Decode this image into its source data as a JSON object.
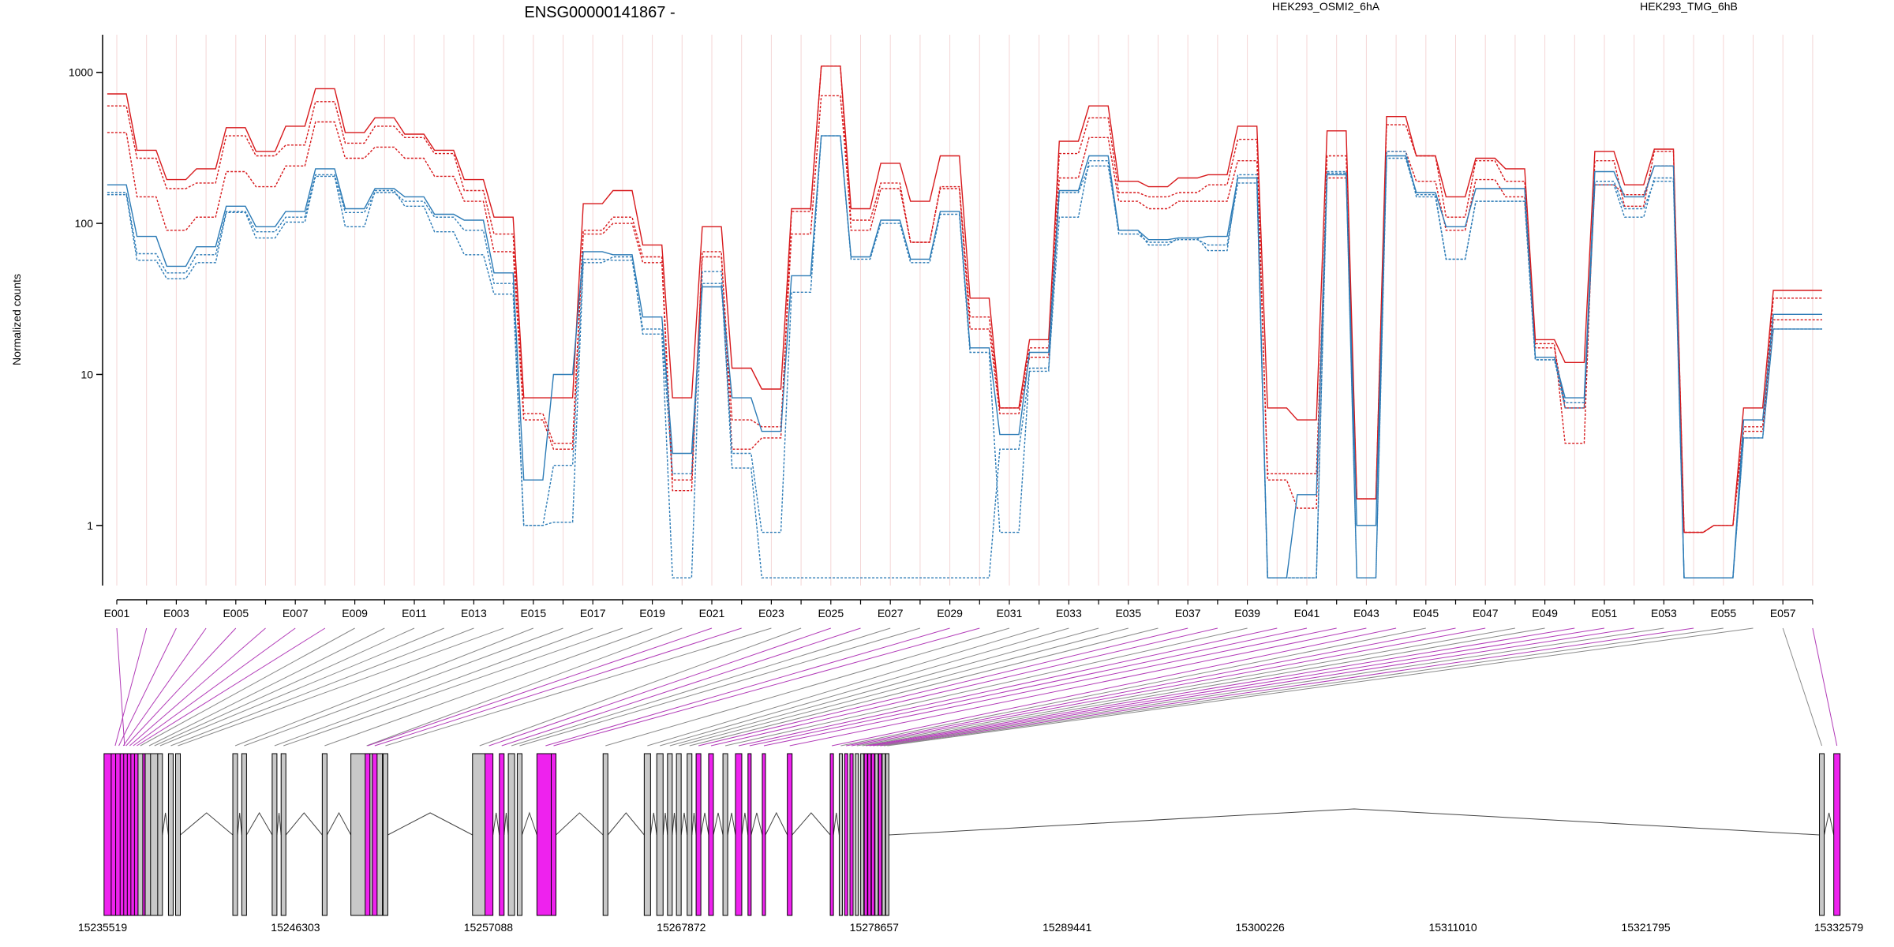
{
  "header": {
    "title": "ENSG00000141867 -",
    "legend": [
      {
        "label": "HEK293_OSMI2_6hA",
        "color": "#d7191c"
      },
      {
        "label": "HEK293_TMG_6hB",
        "color": "#2c7bb6"
      }
    ]
  },
  "colors": {
    "red": "#d7191c",
    "blue": "#2c7bb6",
    "significant_exon": "#ee22ee",
    "exon": "#c8c8c8",
    "gridline": "#f4d6d6",
    "significant_link": "#b23cb8",
    "link": "#8a8a8a"
  },
  "chart_data": {
    "type": "line",
    "ylabel": "Normalized counts",
    "yscale": "log",
    "yticks": [
      1,
      10,
      100,
      1000
    ],
    "ytick_labels": [
      "1",
      "10",
      "100",
      "1000"
    ],
    "ylim": [
      0.4,
      1500
    ],
    "categories": [
      "E001",
      "E002",
      "E003",
      "E004",
      "E005",
      "E006",
      "E007",
      "E008",
      "E009",
      "E010",
      "E011",
      "E012",
      "E013",
      "E014",
      "E015",
      "E016",
      "E017",
      "E018",
      "E019",
      "E020",
      "E021",
      "E022",
      "E023",
      "E024",
      "E025",
      "E026",
      "E027",
      "E028",
      "E029",
      "E030",
      "E031",
      "E032",
      "E033",
      "E034",
      "E035",
      "E036",
      "E037",
      "E038",
      "E039",
      "E040",
      "E041",
      "E042",
      "E043",
      "E044",
      "E045",
      "E046",
      "E047",
      "E048",
      "E049",
      "E050",
      "E051",
      "E052",
      "E053",
      "E054",
      "E055",
      "E056",
      "E057",
      "E058"
    ],
    "labeled_ticks": [
      "E001",
      "E003",
      "E005",
      "E007",
      "E009",
      "E011",
      "E013",
      "E015",
      "E017",
      "E019",
      "E021",
      "E023",
      "E025",
      "E027",
      "E029",
      "E031",
      "E033",
      "E035",
      "E037",
      "E039",
      "E041",
      "E043",
      "E045",
      "E047",
      "E049",
      "E051",
      "E053",
      "E055",
      "E057"
    ],
    "series": [
      {
        "name": "HEK293_OSMI2_6hA",
        "color": "red",
        "style": "solid",
        "values": [
          720,
          305,
          195,
          230,
          430,
          300,
          440,
          780,
          400,
          500,
          390,
          305,
          195,
          110,
          7,
          7,
          135,
          165,
          72,
          7,
          95,
          11,
          8,
          125,
          1100,
          125,
          250,
          140,
          280,
          32,
          6,
          17,
          350,
          600,
          190,
          175,
          200,
          210,
          440,
          6,
          5,
          410,
          1.5,
          510,
          280,
          150,
          270,
          230,
          17,
          12,
          300,
          180,
          310,
          0.9,
          1,
          6,
          36,
          36
        ]
      },
      {
        "name": "HEK293_OSMI2_6hA",
        "color": "red",
        "style": "dashed",
        "values": [
          600,
          270,
          170,
          185,
          380,
          280,
          330,
          640,
          340,
          440,
          370,
          290,
          165,
          85,
          5.5,
          3.5,
          90,
          110,
          60,
          2,
          60,
          5,
          4.5,
          85,
          700,
          105,
          185,
          75,
          175,
          24,
          6,
          15,
          290,
          500,
          160,
          150,
          160,
          180,
          360,
          2,
          1.3,
          280,
          1.5,
          450,
          280,
          110,
          260,
          190,
          16,
          3.5,
          260,
          130,
          300,
          0.9,
          1,
          4.5,
          32,
          32
        ]
      },
      {
        "name": "HEK293_OSMI2_6hA",
        "color": "red",
        "style": "dashed",
        "values": [
          400,
          150,
          90,
          110,
          220,
          175,
          240,
          470,
          270,
          320,
          270,
          205,
          140,
          65,
          5,
          3.2,
          85,
          100,
          55,
          1.7,
          65,
          3.2,
          3.8,
          120,
          1100,
          90,
          170,
          75,
          170,
          20,
          5.5,
          13,
          200,
          370,
          140,
          125,
          140,
          140,
          260,
          2.2,
          2.2,
          200,
          1.5,
          300,
          190,
          90,
          195,
          150,
          15,
          6,
          180,
          155,
          240,
          0.9,
          1,
          4.2,
          23,
          23
        ]
      },
      {
        "name": "HEK293_TMG_6hB",
        "color": "blue",
        "style": "solid",
        "values": [
          180,
          82,
          52,
          70,
          130,
          95,
          120,
          230,
          125,
          170,
          150,
          115,
          105,
          47,
          2,
          10,
          65,
          62,
          24,
          3,
          38,
          7,
          4.2,
          45,
          380,
          60,
          105,
          58,
          120,
          15,
          4,
          14,
          165,
          280,
          90,
          78,
          80,
          82,
          200,
          0.45,
          1.6,
          210,
          1,
          280,
          160,
          95,
          170,
          170,
          13,
          7,
          220,
          150,
          240,
          0.45,
          0.45,
          5,
          25,
          25
        ]
      },
      {
        "name": "HEK293_TMG_6hB",
        "color": "blue",
        "style": "dashed",
        "values": [
          160,
          63,
          47,
          62,
          120,
          88,
          110,
          210,
          118,
          160,
          140,
          110,
          90,
          40,
          1,
          2.5,
          58,
          57,
          20,
          2.2,
          40,
          3,
          0.9,
          35,
          380,
          58,
          100,
          55,
          115,
          14,
          0.9,
          11,
          110,
          260,
          85,
          75,
          78,
          72,
          185,
          0.45,
          0.45,
          215,
          0.45,
          270,
          155,
          58,
          140,
          140,
          12.5,
          6,
          180,
          110,
          200,
          0.45,
          0.45,
          3.8,
          20,
          20
        ]
      },
      {
        "name": "HEK293_TMG_6hB",
        "color": "blue",
        "style": "dashed",
        "values": [
          155,
          57,
          43,
          55,
          118,
          80,
          102,
          205,
          95,
          165,
          130,
          88,
          62,
          34,
          1,
          1.05,
          55,
          60,
          18.5,
          0.45,
          48,
          2.4,
          0.45,
          0.45,
          0.45,
          0.45,
          0.45,
          0.45,
          0.45,
          0.45,
          3.2,
          10.5,
          160,
          240,
          90,
          72,
          80,
          66,
          210,
          0.45,
          0.45,
          220,
          0.45,
          300,
          150,
          58,
          140,
          140,
          12.5,
          6.5,
          190,
          125,
          190,
          0.45,
          0.45,
          3.8,
          20,
          20
        ]
      }
    ],
    "gene_model": {
      "coordinate_ticks": [
        "15235519",
        "15246303",
        "15257088",
        "15267872",
        "15278657",
        "15289441",
        "15300226",
        "15311010",
        "15321795",
        "15332579"
      ],
      "start": 15235519,
      "end": 15332579,
      "significant_exons": [
        1,
        2,
        3,
        4,
        5,
        6,
        7,
        8,
        21,
        22,
        25,
        26,
        29,
        30,
        37,
        38,
        40,
        41,
        42,
        43,
        44,
        46,
        47,
        50,
        51,
        52,
        54,
        58
      ]
    }
  }
}
